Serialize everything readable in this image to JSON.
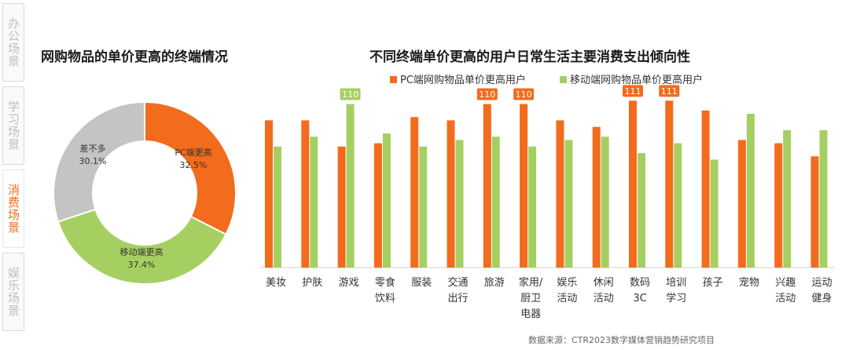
{
  "side_tabs": [
    {
      "label": "办公场景",
      "active": false
    },
    {
      "label": "学习场景",
      "active": false
    },
    {
      "label": "消费场景",
      "active": true
    },
    {
      "label": "娱乐场景",
      "active": false
    }
  ],
  "colors": {
    "pc": "#f36b1c",
    "mobile": "#a6cf62",
    "neutral": "#c4c4c4",
    "accent": "#f36b1c"
  },
  "chart_data": [
    {
      "type": "pie",
      "title": "网购物品的单价更高的终端情况",
      "slices": [
        {
          "label": "PC端更高",
          "value": 32.5,
          "value_label": "32.5%",
          "color": "#f36b1c"
        },
        {
          "label": "移动端更高",
          "value": 37.4,
          "value_label": "37.4%",
          "color": "#a6cf62"
        },
        {
          "label": "差不多",
          "value": 30.1,
          "value_label": "30.1%",
          "color": "#c4c4c4"
        }
      ]
    },
    {
      "type": "bar",
      "title": "不同终端单价更高的用户日常生活主要消费支出倾向性",
      "categories": [
        "美妆",
        "护肤",
        "游戏",
        "零食\n饮料",
        "服装",
        "交通\n出行",
        "旅游",
        "家用/\n厨卫\n电器",
        "娱乐\n活动",
        "休闲\n活动",
        "数码\n3C",
        "培训\n学习",
        "孩子",
        "宠物",
        "兴趣\n活动",
        "运动\n健身"
      ],
      "series": [
        {
          "name": "PC端网购物品单价更高用户",
          "color": "#f36b1c",
          "values": [
            105,
            105,
            97,
            98,
            106,
            105,
            110,
            110,
            105,
            103,
            111,
            111,
            108,
            99,
            98,
            94
          ]
        },
        {
          "name": "移动端网购物品单价更高用户",
          "color": "#a6cf62",
          "values": [
            97,
            100,
            110,
            101,
            97,
            99,
            100,
            97,
            99,
            100,
            95,
            98,
            93,
            107,
            102,
            102
          ]
        }
      ],
      "annotations": [
        {
          "category_index": 2,
          "series": 1,
          "text": "110"
        },
        {
          "category_index": 6,
          "series": 0,
          "text": "110"
        },
        {
          "category_index": 7,
          "series": 0,
          "text": "110"
        },
        {
          "category_index": 10,
          "series": 0,
          "text": "111"
        },
        {
          "category_index": 11,
          "series": 0,
          "text": "111"
        }
      ],
      "ylim": [
        60,
        113
      ],
      "grid": false,
      "legend_position": "top-center"
    }
  ],
  "source_note": "数据来源：CTR2023数字媒体营销趋势研究项目"
}
